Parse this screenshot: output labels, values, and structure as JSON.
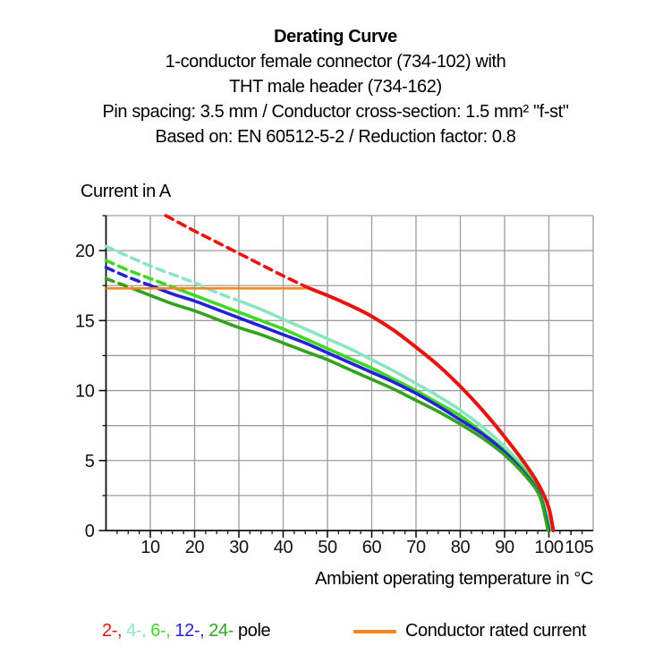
{
  "header": {
    "title": "Derating Curve",
    "lines": [
      "1-conductor female connector (734-102) with",
      "THT male header (734-162)",
      "Pin spacing: 3.5 mm / Conductor cross-section: 1.5 mm² \"f-st\"",
      "Based on: EN 60512-5-2 / Reduction factor: 0.8"
    ]
  },
  "legend": {
    "pole_items": [
      {
        "label": "2-,",
        "color": "#e8130c"
      },
      {
        "label": "4-,",
        "color": "#8be4c4"
      },
      {
        "label": "6-,",
        "color": "#3fd824"
      },
      {
        "label": "12-,",
        "color": "#2222d8"
      },
      {
        "label": "24-",
        "color": "#33a31f"
      }
    ],
    "suffix": "pole",
    "rated": {
      "label": "Conductor rated current",
      "color": "#f7861d"
    }
  },
  "chart_data": {
    "type": "line",
    "title": "Derating Curve",
    "xlabel": "Ambient operating temperature in °C",
    "ylabel": "Current in A",
    "xlim": [
      0,
      110
    ],
    "ylim": [
      0,
      22.5
    ],
    "x_major_ticks": [
      10,
      20,
      30,
      40,
      50,
      60,
      70,
      80,
      90,
      100,
      105
    ],
    "y_major_ticks": [
      0,
      5,
      10,
      15,
      20
    ],
    "x_minor_step": 2.5,
    "y_minor_step": 2.5,
    "x_grid_step": 10,
    "y_grid_step": 2.5,
    "grid": true,
    "grid_color": "#9c9c9c",
    "axis_color": "#111111",
    "legend_position": "bottom",
    "rated_current_line": {
      "label": "Conductor rated current",
      "color": "#f7861d",
      "current_A": 17.3,
      "temp_range": [
        0,
        46
      ]
    },
    "series": [
      {
        "name": "2-pole",
        "color": "#e8130c",
        "dashed_points": [
          [
            13.5,
            22.5
          ],
          [
            20,
            21.4
          ],
          [
            25,
            20.6
          ],
          [
            30,
            19.8
          ],
          [
            35,
            19.0
          ],
          [
            40,
            18.2
          ],
          [
            46,
            17.3
          ]
        ],
        "solid_points": [
          [
            46,
            17.3
          ],
          [
            50,
            16.8
          ],
          [
            55,
            16.1
          ],
          [
            60,
            15.3
          ],
          [
            65,
            14.3
          ],
          [
            70,
            13.1
          ],
          [
            75,
            11.8
          ],
          [
            80,
            10.3
          ],
          [
            85,
            8.6
          ],
          [
            90,
            6.7
          ],
          [
            95,
            4.6
          ],
          [
            98,
            3.1
          ],
          [
            100,
            1.6
          ],
          [
            101,
            0
          ]
        ]
      },
      {
        "name": "4-pole",
        "color": "#8be4c4",
        "dashed_points": [
          [
            0,
            20.3
          ],
          [
            5,
            19.6
          ],
          [
            10,
            18.9
          ],
          [
            15,
            18.3
          ],
          [
            20,
            17.7
          ],
          [
            25,
            17.0
          ],
          [
            31,
            16.3
          ]
        ],
        "solid_points": [
          [
            31,
            16.3
          ],
          [
            35,
            15.8
          ],
          [
            40,
            15.1
          ],
          [
            45,
            14.4
          ],
          [
            50,
            13.7
          ],
          [
            55,
            13.0
          ],
          [
            60,
            12.2
          ],
          [
            65,
            11.4
          ],
          [
            70,
            10.5
          ],
          [
            75,
            9.6
          ],
          [
            80,
            8.6
          ],
          [
            85,
            7.4
          ],
          [
            90,
            6.0
          ],
          [
            95,
            4.3
          ],
          [
            98,
            2.7
          ],
          [
            100.4,
            0
          ]
        ]
      },
      {
        "name": "6-pole",
        "color": "#3fd824",
        "dashed_points": [
          [
            0,
            19.3
          ],
          [
            5,
            18.6
          ],
          [
            10,
            18.0
          ],
          [
            15,
            17.4
          ]
        ],
        "solid_points": [
          [
            15,
            17.4
          ],
          [
            20,
            16.8
          ],
          [
            25,
            16.2
          ],
          [
            30,
            15.6
          ],
          [
            35,
            15.0
          ],
          [
            40,
            14.4
          ],
          [
            45,
            13.7
          ],
          [
            50,
            13.0
          ],
          [
            55,
            12.3
          ],
          [
            60,
            11.6
          ],
          [
            65,
            10.8
          ],
          [
            70,
            10.0
          ],
          [
            75,
            9.1
          ],
          [
            80,
            8.2
          ],
          [
            85,
            7.0
          ],
          [
            90,
            5.7
          ],
          [
            95,
            4.1
          ],
          [
            98,
            2.6
          ],
          [
            100.2,
            0
          ]
        ]
      },
      {
        "name": "12-pole",
        "color": "#2222d8",
        "dashed_points": [
          [
            0,
            18.8
          ],
          [
            5,
            18.1
          ],
          [
            11,
            17.4
          ]
        ],
        "solid_points": [
          [
            11,
            17.4
          ],
          [
            15,
            16.9
          ],
          [
            20,
            16.4
          ],
          [
            25,
            15.8
          ],
          [
            30,
            15.2
          ],
          [
            35,
            14.6
          ],
          [
            40,
            14.0
          ],
          [
            45,
            13.4
          ],
          [
            50,
            12.7
          ],
          [
            55,
            12.0
          ],
          [
            60,
            11.3
          ],
          [
            65,
            10.6
          ],
          [
            70,
            9.8
          ],
          [
            75,
            8.9
          ],
          [
            80,
            7.9
          ],
          [
            85,
            6.9
          ],
          [
            90,
            5.6
          ],
          [
            95,
            3.9
          ],
          [
            98,
            2.5
          ],
          [
            100,
            0
          ]
        ]
      },
      {
        "name": "24-pole",
        "color": "#33a31f",
        "dashed_points": [
          [
            0,
            18.0
          ],
          [
            6,
            17.3
          ]
        ],
        "solid_points": [
          [
            6,
            17.3
          ],
          [
            10,
            16.8
          ],
          [
            15,
            16.2
          ],
          [
            20,
            15.7
          ],
          [
            25,
            15.1
          ],
          [
            30,
            14.5
          ],
          [
            35,
            14.0
          ],
          [
            40,
            13.4
          ],
          [
            45,
            12.8
          ],
          [
            50,
            12.2
          ],
          [
            55,
            11.5
          ],
          [
            60,
            10.8
          ],
          [
            65,
            10.1
          ],
          [
            70,
            9.3
          ],
          [
            75,
            8.5
          ],
          [
            80,
            7.6
          ],
          [
            85,
            6.6
          ],
          [
            90,
            5.4
          ],
          [
            95,
            3.8
          ],
          [
            98,
            2.4
          ],
          [
            99.8,
            0
          ]
        ]
      }
    ]
  }
}
